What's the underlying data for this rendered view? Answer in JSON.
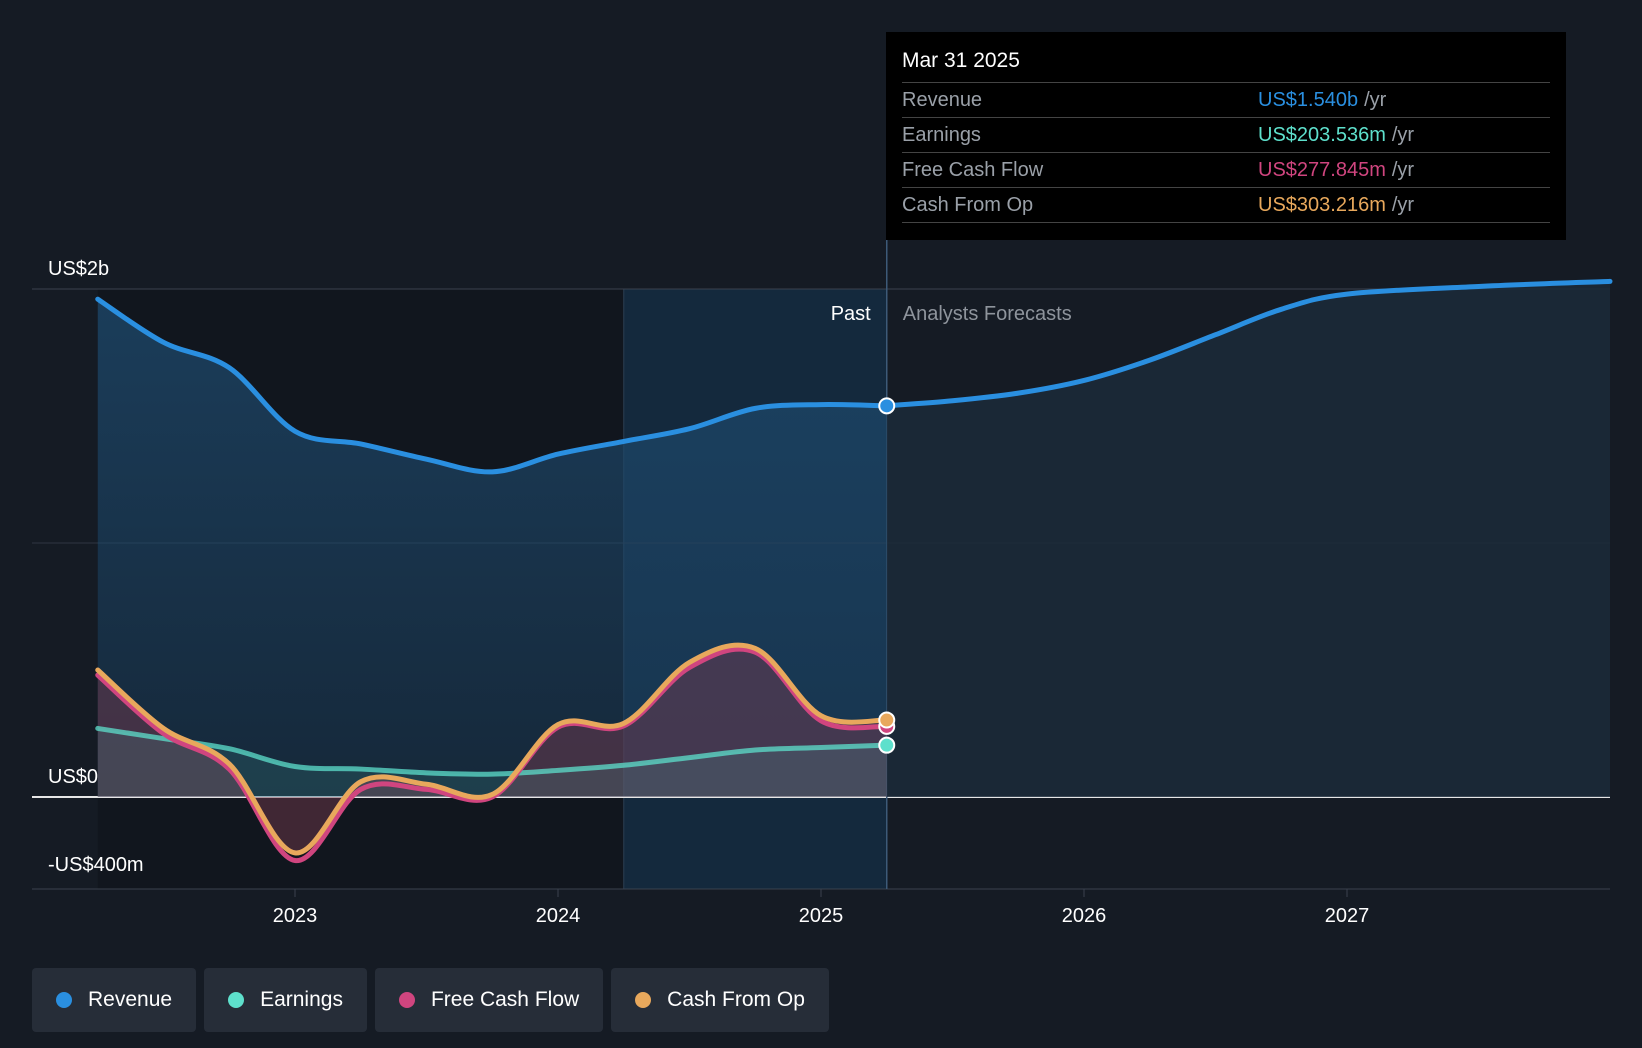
{
  "chart_data": {
    "type": "line",
    "y_axis_labels": [
      "US$2b",
      "US$0",
      "-US$400m"
    ],
    "ylim": [
      -400,
      2000
    ],
    "x_ticks": [
      "2023",
      "2024",
      "2025",
      "2026",
      "2027"
    ],
    "xlim": [
      2022.0,
      2028.0
    ],
    "past_label": "Past",
    "forecast_label": "Analysts Forecasts",
    "divider_x": 2025.25,
    "series": [
      {
        "name": "Revenue",
        "color": "#2a8fe0",
        "x": [
          2022.25,
          2022.5,
          2022.75,
          2023.0,
          2023.25,
          2023.5,
          2023.75,
          2024.0,
          2024.25,
          2024.5,
          2024.75,
          2025.0,
          2025.25
        ],
        "values": [
          1960,
          1790,
          1690,
          1440,
          1390,
          1330,
          1280,
          1350,
          1400,
          1450,
          1530,
          1545,
          1540
        ]
      },
      {
        "name": "Revenue forecast",
        "color": "#2a8fe0",
        "x": [
          2025.25,
          2025.5,
          2025.75,
          2026.0,
          2026.25,
          2026.5,
          2026.75,
          2027.0,
          2027.5,
          2028.0
        ],
        "values": [
          1540,
          1560,
          1590,
          1640,
          1720,
          1820,
          1920,
          1980,
          2010,
          2030
        ]
      },
      {
        "name": "Earnings",
        "color": "#5ee0cc",
        "x": [
          2022.25,
          2022.5,
          2022.75,
          2023.0,
          2023.25,
          2023.5,
          2023.75,
          2024.0,
          2024.25,
          2024.5,
          2024.75,
          2025.0,
          2025.25
        ],
        "values": [
          270,
          230,
          190,
          120,
          110,
          95,
          90,
          105,
          125,
          155,
          185,
          195,
          204
        ]
      },
      {
        "name": "Free Cash Flow",
        "color": "#d0457f",
        "x": [
          2022.25,
          2022.5,
          2022.75,
          2023.0,
          2023.25,
          2023.5,
          2023.75,
          2024.0,
          2024.25,
          2024.5,
          2024.75,
          2025.0,
          2025.25
        ],
        "values": [
          480,
          250,
          110,
          -250,
          30,
          30,
          0,
          275,
          280,
          510,
          570,
          300,
          278
        ]
      },
      {
        "name": "Cash From Op",
        "color": "#e8a85c",
        "x": [
          2022.25,
          2022.5,
          2022.75,
          2023.0,
          2023.25,
          2023.5,
          2023.75,
          2024.0,
          2024.25,
          2024.5,
          2024.75,
          2025.0,
          2025.25
        ],
        "values": [
          500,
          270,
          130,
          -220,
          60,
          50,
          10,
          285,
          290,
          530,
          585,
          320,
          303
        ]
      }
    ],
    "tooltip": {
      "date": "Mar 31 2025",
      "rows": [
        {
          "label": "Revenue",
          "value": "US$1.540b",
          "unit": "/yr",
          "color": "#2a8fe0"
        },
        {
          "label": "Earnings",
          "value": "US$203.536m",
          "unit": "/yr",
          "color": "#5ee0cc"
        },
        {
          "label": "Free Cash Flow",
          "value": "US$277.845m",
          "unit": "/yr",
          "color": "#d0457f"
        },
        {
          "label": "Cash From Op",
          "value": "US$303.216m",
          "unit": "/yr",
          "color": "#e8a85c"
        }
      ]
    },
    "legend": [
      {
        "label": "Revenue",
        "color": "#2a8fe0"
      },
      {
        "label": "Earnings",
        "color": "#5ee0cc"
      },
      {
        "label": "Free Cash Flow",
        "color": "#d0457f"
      },
      {
        "label": "Cash From Op",
        "color": "#e8a85c"
      }
    ]
  }
}
